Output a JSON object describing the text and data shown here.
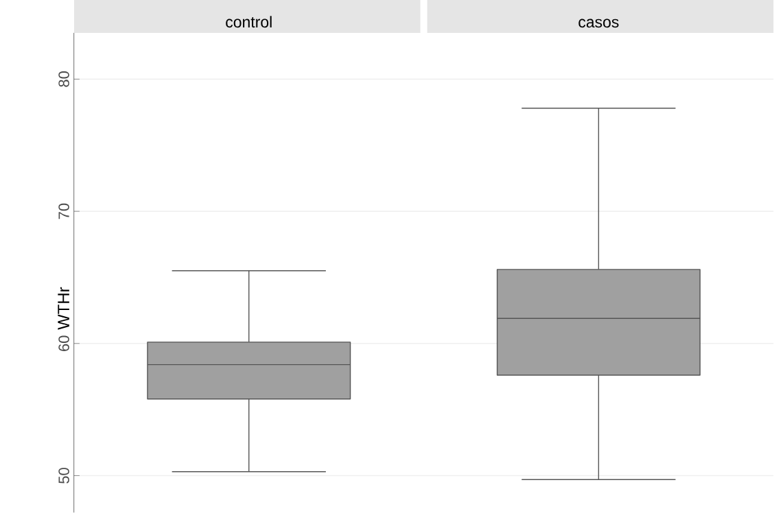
{
  "chart_data": {
    "type": "box",
    "ylabel": "WTHr",
    "categories": [
      "control",
      "casos"
    ],
    "color": "#a0a0a0",
    "ylim": [
      47.2,
      83.5
    ],
    "yticks": [
      50,
      60,
      70,
      80
    ],
    "grid": "y",
    "boxes": [
      {
        "low": 50.3,
        "q1": 55.8,
        "median": 58.4,
        "q3": 60.1,
        "high": 65.5
      },
      {
        "low": 49.7,
        "q1": 57.6,
        "median": 61.9,
        "q3": 65.6,
        "high": 77.8
      }
    ]
  }
}
